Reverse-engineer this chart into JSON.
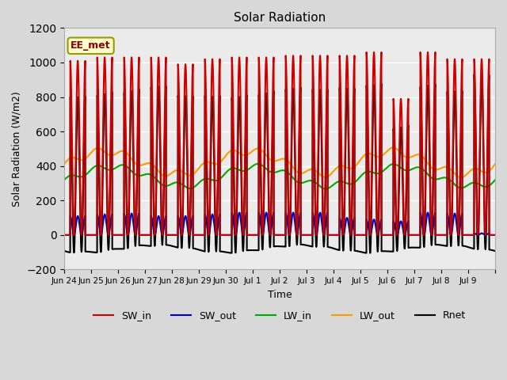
{
  "title": "Solar Radiation",
  "xlabel": "Time",
  "ylabel": "Solar Radiation (W/m2)",
  "annotation": "EE_met",
  "ylim": [
    -200,
    1200
  ],
  "series": {
    "SW_in": {
      "color": "#cc0000",
      "lw": 1.5
    },
    "SW_out": {
      "color": "#0000cc",
      "lw": 1.5
    },
    "LW_in": {
      "color": "#00aa00",
      "lw": 1.5
    },
    "LW_out": {
      "color": "#ff9900",
      "lw": 1.5
    },
    "Rnet": {
      "color": "#000000",
      "lw": 1.5
    }
  },
  "x_tick_labels": [
    "Jun 24",
    "Jun 25",
    "Jun 26",
    "Jun 27",
    "Jun 28",
    "Jun 29",
    "Jun 30",
    "Jul 1",
    "Jul 2",
    "Jul 3",
    "Jul 4",
    "Jul 5",
    "Jul 6",
    "Jul 7",
    "Jul 8",
    "Jul 9"
  ],
  "n_days": 16,
  "samples_per_day": 288,
  "peaks_SW_in": [
    1010,
    1030,
    1030,
    1030,
    990,
    1020,
    1030,
    1030,
    1040,
    1040,
    1040,
    1060,
    790,
    1060,
    1020,
    1020
  ],
  "peaks_SW_out": [
    110,
    120,
    125,
    110,
    110,
    120,
    130,
    130,
    130,
    130,
    100,
    90,
    80,
    130,
    125,
    10
  ],
  "lw_in_base": 340,
  "lw_in_amp": 55,
  "lw_out_base": 420,
  "lw_out_amp": 65
}
